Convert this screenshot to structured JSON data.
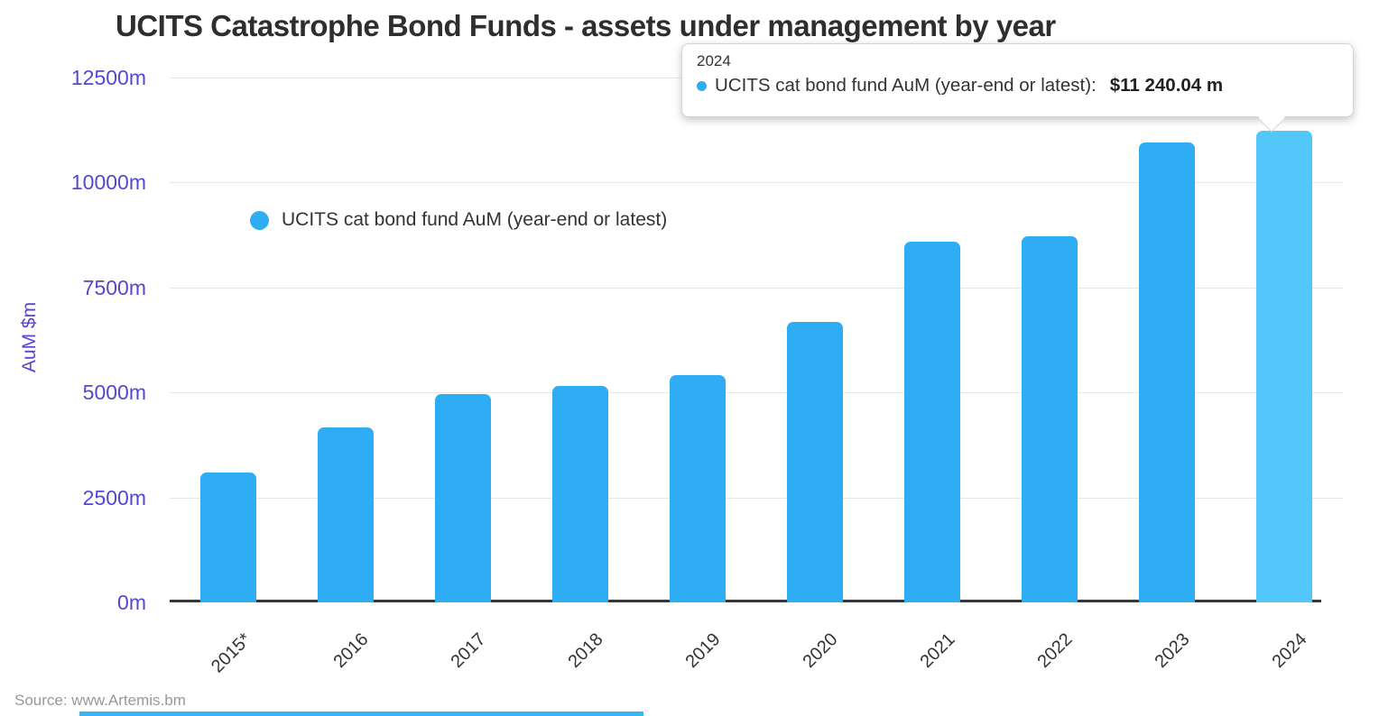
{
  "title": "UCITS Catastrophe Bond Funds - assets under management by year",
  "source": "Source: www.Artemis.bm",
  "legend": {
    "label": "UCITS cat bond fund AuM (year-end or latest)"
  },
  "tooltip": {
    "year": "2024",
    "series_label": "UCITS cat bond fund AuM (year-end or latest):",
    "value": "$11 240.04 m"
  },
  "y_axis": {
    "title": "AuM $m",
    "ticks": [
      {
        "label": "12500m",
        "value": 12500
      },
      {
        "label": "10000m",
        "value": 10000
      },
      {
        "label": "7500m",
        "value": 7500
      },
      {
        "label": "5000m",
        "value": 5000
      },
      {
        "label": "2500m",
        "value": 2500
      },
      {
        "label": "0m",
        "value": 0
      }
    ]
  },
  "chart_data": {
    "type": "bar",
    "title": "UCITS Catastrophe Bond Funds - assets under management by year",
    "categories": [
      "2015*",
      "2016",
      "2017",
      "2018",
      "2019",
      "2020",
      "2021",
      "2022",
      "2023",
      "2024"
    ],
    "series": [
      {
        "name": "UCITS cat bond fund AuM (year-end or latest)",
        "values": [
          3100,
          4170,
          4960,
          5160,
          5420,
          6690,
          8600,
          8710,
          10950,
          11240.04
        ]
      }
    ],
    "xlabel": "",
    "ylabel": "AuM $m",
    "ylim": [
      0,
      12500
    ],
    "grid": true,
    "legend_position": "inside-top-left",
    "highlighted_category": "2024",
    "tooltip_shown_for": "2024"
  },
  "colors": {
    "bar": "#2fadf4",
    "bar_highlight": "#53c7f9",
    "axis_text": "#5547d1",
    "title_text": "#2e2e2e",
    "grid": "#e7e7e7",
    "baseline": "#37383b",
    "source_text": "#999999"
  }
}
